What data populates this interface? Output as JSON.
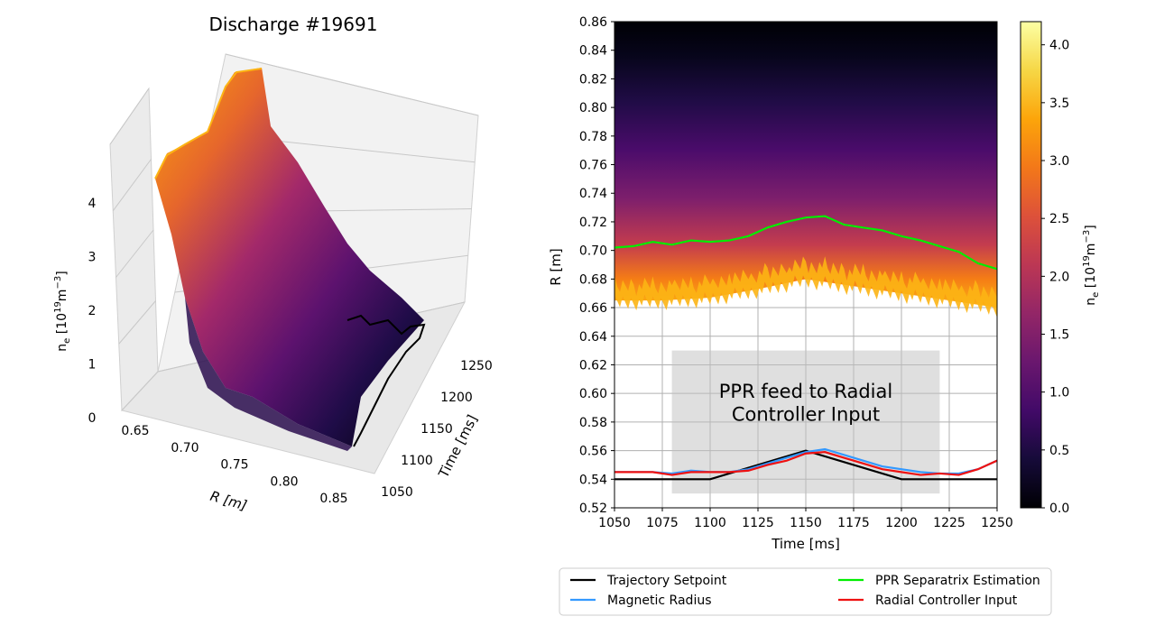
{
  "chart_data": [
    {
      "type": "surface3d",
      "title": "Discharge #19691",
      "xlabel": "R [m]",
      "ylabel": "Time [ms]",
      "zlabel_main": "n",
      "zlabel_sub": "e",
      "zlabel_units": "[10",
      "zlabel_exp": "19",
      "zlabel_tail": "m",
      "zlabel_tail_exp": "−3",
      "zlabel_close": "]",
      "xlim": [
        0.63,
        0.87
      ],
      "ylim": [
        1050,
        1250
      ],
      "zlim": [
        0,
        4.2
      ],
      "x_ticks": [
        "0.65",
        "0.70",
        "0.75",
        "0.80",
        "0.85"
      ],
      "y_ticks": [
        "1050",
        "1100",
        "1150",
        "1200",
        "1250"
      ],
      "z_ticks": [
        "0",
        "1",
        "2",
        "3",
        "4"
      ],
      "colormap": "inferno",
      "edge_profile_near_R": [
        [
          0.645,
          4.2
        ],
        [
          0.66,
          3.3
        ],
        [
          0.68,
          2.2
        ],
        [
          0.7,
          1.4
        ],
        [
          0.72,
          0.9
        ],
        [
          0.75,
          0.55
        ],
        [
          0.8,
          0.3
        ],
        [
          0.86,
          0.15
        ]
      ],
      "edge_profile_far_R": [
        [
          0.645,
          4.2
        ],
        [
          0.67,
          3.0
        ],
        [
          0.7,
          1.6
        ],
        [
          0.75,
          0.8
        ],
        [
          0.8,
          0.4
        ],
        [
          0.86,
          0.3
        ]
      ]
    },
    {
      "type": "heatmap",
      "xlabel": "Time [ms]",
      "ylabel": "R [m]",
      "xlim": [
        1050,
        1250
      ],
      "ylim": [
        0.52,
        0.86
      ],
      "x_ticks": [
        "1050",
        "1075",
        "1100",
        "1125",
        "1150",
        "1175",
        "1200",
        "1225",
        "1250"
      ],
      "y_ticks": [
        "0.52",
        "0.54",
        "0.56",
        "0.58",
        "0.60",
        "0.62",
        "0.64",
        "0.66",
        "0.68",
        "0.70",
        "0.72",
        "0.74",
        "0.76",
        "0.78",
        "0.80",
        "0.82",
        "0.84",
        "0.86"
      ],
      "grid": true,
      "colormap": "inferno",
      "colorbar": {
        "range": [
          0.0,
          4.2
        ],
        "ticks": [
          "0.0",
          "0.5",
          "1.0",
          "1.5",
          "2.0",
          "2.5",
          "3.0",
          "3.5",
          "4.0"
        ],
        "label_main": "n",
        "label_sub": "e",
        "label_units": "[10",
        "label_exp": "19",
        "label_tail": "m",
        "label_tail_exp": "−3",
        "label_close": "]"
      },
      "annotation": [
        "PPR feed to Radial",
        "Controller Input"
      ],
      "annotation_box": {
        "time": [
          1080,
          1220
        ],
        "R": [
          0.53,
          0.63
        ]
      },
      "density_edge_R": [
        [
          1050,
          0.665
        ],
        [
          1075,
          0.665
        ],
        [
          1100,
          0.667
        ],
        [
          1125,
          0.673
        ],
        [
          1150,
          0.68
        ],
        [
          1175,
          0.675
        ],
        [
          1200,
          0.67
        ],
        [
          1225,
          0.665
        ],
        [
          1250,
          0.66
        ]
      ],
      "series": [
        {
          "name": "Trajectory Setpoint",
          "color": "#000000",
          "x": [
            1050,
            1100,
            1150,
            1200,
            1250
          ],
          "y": [
            0.54,
            0.54,
            0.56,
            0.54,
            0.54
          ]
        },
        {
          "name": "Magnetic Radius",
          "color": "#3399ff",
          "x": [
            1050,
            1060,
            1070,
            1080,
            1090,
            1100,
            1110,
            1120,
            1130,
            1140,
            1150,
            1160,
            1170,
            1180,
            1190,
            1200,
            1210,
            1220,
            1230,
            1240,
            1250
          ],
          "y": [
            0.545,
            0.545,
            0.545,
            0.544,
            0.546,
            0.545,
            0.545,
            0.547,
            0.551,
            0.555,
            0.559,
            0.561,
            0.557,
            0.553,
            0.549,
            0.547,
            0.545,
            0.544,
            0.544,
            0.547,
            0.553
          ]
        },
        {
          "name": "PPR Separatrix Estimation",
          "color": "#00ee00",
          "x": [
            1050,
            1060,
            1070,
            1080,
            1090,
            1100,
            1110,
            1120,
            1130,
            1140,
            1150,
            1160,
            1170,
            1180,
            1190,
            1200,
            1210,
            1220,
            1230,
            1240,
            1250
          ],
          "y": [
            0.702,
            0.703,
            0.706,
            0.704,
            0.707,
            0.706,
            0.707,
            0.71,
            0.716,
            0.72,
            0.723,
            0.724,
            0.718,
            0.716,
            0.714,
            0.71,
            0.707,
            0.703,
            0.699,
            0.691,
            0.687
          ]
        },
        {
          "name": "Radial Controller Input",
          "color": "#ee1111",
          "x": [
            1050,
            1060,
            1070,
            1080,
            1090,
            1100,
            1110,
            1120,
            1130,
            1140,
            1150,
            1160,
            1170,
            1180,
            1190,
            1200,
            1210,
            1220,
            1230,
            1240,
            1250
          ],
          "y": [
            0.545,
            0.545,
            0.545,
            0.543,
            0.545,
            0.545,
            0.545,
            0.546,
            0.55,
            0.553,
            0.558,
            0.559,
            0.555,
            0.551,
            0.547,
            0.545,
            0.543,
            0.544,
            0.543,
            0.547,
            0.553
          ]
        }
      ],
      "legend": {
        "placement": "below",
        "entries": [
          {
            "label": "Trajectory Setpoint",
            "color": "#000000"
          },
          {
            "label": "Magnetic Radius",
            "color": "#3399ff"
          },
          {
            "label": "PPR Separatrix Estimation",
            "color": "#00ee00"
          },
          {
            "label": "Radial Controller Input",
            "color": "#ee1111"
          }
        ]
      }
    }
  ]
}
